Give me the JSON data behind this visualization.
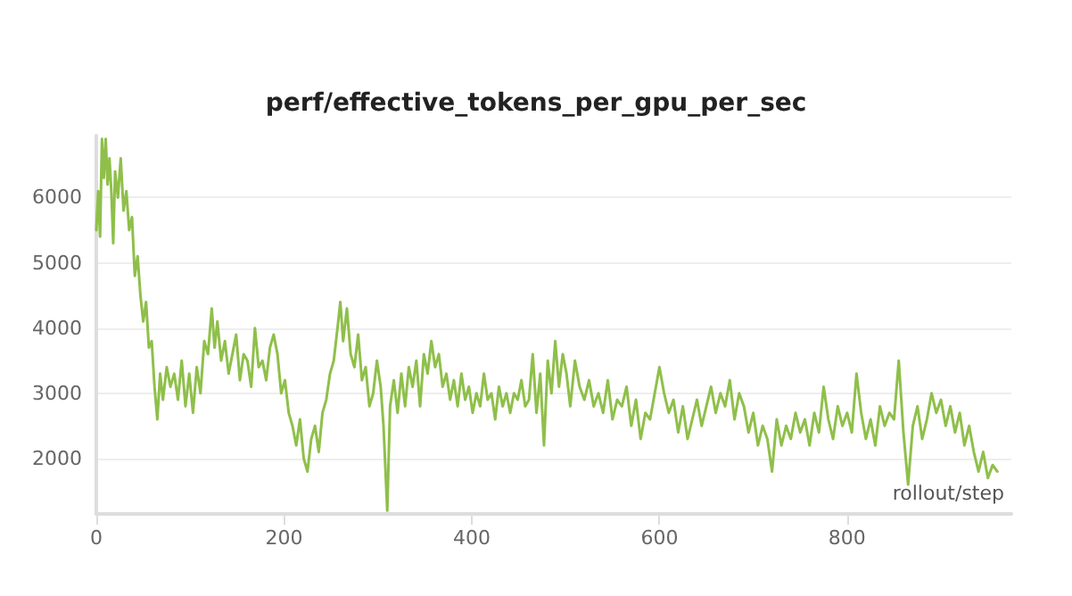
{
  "chart_data": {
    "type": "line",
    "title": "perf/effective_tokens_per_gpu_per_sec",
    "xlabel": "rollout/step",
    "xlim": [
      0,
      975
    ],
    "xticks": [
      0,
      200,
      400,
      600,
      800
    ],
    "ylim": [
      1150,
      6950
    ],
    "yticks": [
      2000,
      3000,
      4000,
      5000,
      6000
    ],
    "grid": "y",
    "marker": "none",
    "line_style": "solid",
    "series": [
      {
        "color": "#8fbf4a",
        "x": [
          0,
          2,
          4,
          6,
          8,
          10,
          12,
          14,
          16,
          18,
          20,
          23,
          26,
          29,
          32,
          35,
          38,
          41,
          44,
          47,
          50,
          53,
          56,
          59,
          62,
          65,
          68,
          71,
          75,
          79,
          83,
          87,
          91,
          95,
          99,
          103,
          107,
          111,
          115,
          119,
          123,
          126,
          129,
          133,
          137,
          141,
          145,
          149,
          153,
          157,
          161,
          165,
          169,
          173,
          177,
          181,
          185,
          189,
          193,
          197,
          201,
          205,
          209,
          213,
          217,
          221,
          225,
          229,
          233,
          237,
          241,
          245,
          249,
          253,
          257,
          260,
          263,
          267,
          271,
          275,
          279,
          283,
          287,
          291,
          295,
          299,
          303,
          306,
          310,
          313,
          317,
          321,
          325,
          329,
          333,
          337,
          341,
          345,
          349,
          353,
          357,
          361,
          365,
          369,
          373,
          377,
          381,
          385,
          389,
          393,
          397,
          401,
          405,
          409,
          413,
          417,
          421,
          425,
          429,
          433,
          437,
          441,
          445,
          449,
          453,
          457,
          461,
          465,
          469,
          473,
          477,
          481,
          485,
          489,
          493,
          497,
          501,
          505,
          510,
          515,
          520,
          525,
          530,
          535,
          540,
          545,
          550,
          555,
          560,
          565,
          570,
          575,
          580,
          585,
          590,
          595,
          600,
          605,
          610,
          615,
          620,
          625,
          630,
          635,
          640,
          645,
          650,
          655,
          660,
          665,
          670,
          675,
          680,
          685,
          690,
          695,
          700,
          705,
          710,
          715,
          720,
          725,
          730,
          735,
          740,
          745,
          750,
          755,
          760,
          765,
          770,
          775,
          780,
          785,
          790,
          795,
          800,
          805,
          810,
          815,
          820,
          825,
          830,
          835,
          840,
          845,
          850,
          855,
          860,
          865,
          870,
          875,
          880,
          885,
          890,
          895,
          900,
          905,
          910,
          915,
          920,
          925,
          930,
          935,
          940,
          945,
          950,
          955,
          960
        ],
        "values": [
          5500,
          6100,
          5400,
          6900,
          6300,
          6900,
          6200,
          6600,
          6100,
          5300,
          6400,
          6000,
          6600,
          5800,
          6100,
          5500,
          5700,
          4800,
          5100,
          4500,
          4100,
          4400,
          3700,
          3800,
          3100,
          2600,
          3300,
          2900,
          3400,
          3100,
          3300,
          2900,
          3500,
          2800,
          3300,
          2700,
          3400,
          3000,
          3800,
          3600,
          4300,
          3700,
          4100,
          3500,
          3800,
          3300,
          3600,
          3900,
          3200,
          3600,
          3500,
          3100,
          4000,
          3400,
          3500,
          3200,
          3700,
          3900,
          3600,
          3000,
          3200,
          2700,
          2500,
          2200,
          2600,
          2000,
          1800,
          2300,
          2500,
          2100,
          2700,
          2900,
          3300,
          3500,
          4000,
          4400,
          3800,
          4300,
          3600,
          3400,
          3900,
          3200,
          3400,
          2800,
          3000,
          3500,
          3100,
          2500,
          1200,
          2800,
          3200,
          2700,
          3300,
          2800,
          3400,
          3100,
          3500,
          2800,
          3600,
          3300,
          3800,
          3400,
          3600,
          3100,
          3300,
          2900,
          3200,
          2800,
          3300,
          2900,
          3100,
          2700,
          3000,
          2800,
          3300,
          2900,
          3000,
          2600,
          3100,
          2800,
          3000,
          2700,
          3000,
          2900,
          3200,
          2800,
          2900,
          3600,
          2700,
          3300,
          2200,
          3500,
          3000,
          3800,
          3100,
          3600,
          3300,
          2800,
          3500,
          3100,
          2900,
          3200,
          2800,
          3000,
          2700,
          3200,
          2600,
          2900,
          2800,
          3100,
          2500,
          2900,
          2300,
          2700,
          2600,
          3000,
          3400,
          3000,
          2700,
          2900,
          2400,
          2800,
          2300,
          2600,
          2900,
          2500,
          2800,
          3100,
          2700,
          3000,
          2800,
          3200,
          2600,
          3000,
          2800,
          2400,
          2700,
          2200,
          2500,
          2300,
          1800,
          2600,
          2200,
          2500,
          2300,
          2700,
          2400,
          2600,
          2200,
          2700,
          2400,
          3100,
          2600,
          2300,
          2800,
          2500,
          2700,
          2400,
          3300,
          2700,
          2300,
          2600,
          2200,
          2800,
          2500,
          2700,
          2600,
          3500,
          2400,
          1600,
          2500,
          2800,
          2300,
          2600,
          3000,
          2700,
          2900,
          2500,
          2800,
          2400,
          2700,
          2200,
          2500,
          2100,
          1800,
          2100,
          1700,
          1900,
          1800
        ]
      }
    ]
  }
}
